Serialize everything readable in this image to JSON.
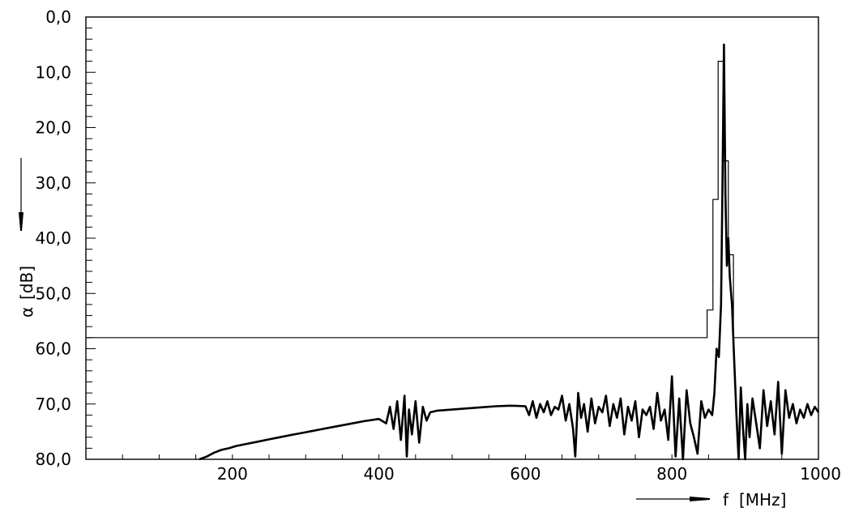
{
  "chart_data": {
    "type": "line",
    "title": "",
    "xlabel_symbol": "f",
    "xlabel_unit": "[MHz]",
    "ylabel_symbol": "α",
    "ylabel_unit": "[dB]",
    "xlim": [
      0,
      1000
    ],
    "ylim": [
      0,
      80
    ],
    "y_inverted": true,
    "grid": false,
    "x_ticks": [
      200,
      400,
      600,
      800,
      1000
    ],
    "x_tick_labels": [
      "200",
      "400",
      "600",
      "800",
      "1000"
    ],
    "y_ticks": [
      0,
      10,
      20,
      30,
      40,
      50,
      60,
      70,
      80
    ],
    "y_tick_labels": [
      "0,0",
      "10,0",
      "20,0",
      "30,0",
      "40,0",
      "50,0",
      "60,0",
      "70,0",
      "80,0"
    ],
    "series": [
      {
        "role": "tolerance-mask",
        "stroke_width": 1.2,
        "x": [
          0,
          848,
          848,
          856,
          856,
          863,
          863,
          870,
          870,
          877,
          877,
          884,
          884,
          891,
          891,
          1000
        ],
        "y": [
          58,
          58,
          53,
          53,
          33,
          33,
          8,
          8,
          26,
          26,
          43,
          43,
          58,
          58,
          58,
          58
        ]
      },
      {
        "role": "measured-response",
        "stroke_width": 2.6,
        "x": [
          155,
          165,
          175,
          185,
          195,
          205,
          220,
          235,
          250,
          265,
          280,
          300,
          320,
          340,
          360,
          380,
          400,
          410,
          415,
          420,
          425,
          430,
          435,
          438,
          441,
          445,
          450,
          455,
          460,
          465,
          470,
          480,
          500,
          520,
          540,
          560,
          580,
          600,
          605,
          610,
          615,
          620,
          625,
          630,
          635,
          640,
          645,
          650,
          655,
          660,
          665,
          668,
          672,
          676,
          680,
          685,
          690,
          695,
          700,
          705,
          710,
          715,
          720,
          725,
          730,
          735,
          740,
          745,
          750,
          755,
          760,
          765,
          770,
          775,
          780,
          785,
          790,
          795,
          800,
          805,
          810,
          815,
          820,
          825,
          830,
          835,
          840,
          845,
          850,
          855,
          858,
          861,
          864,
          867,
          869,
          871,
          873,
          875,
          877,
          879,
          882,
          885,
          888,
          891,
          894,
          897,
          900,
          903,
          906,
          910,
          915,
          920,
          925,
          930,
          935,
          940,
          945,
          950,
          955,
          960,
          965,
          970,
          975,
          980,
          985,
          990,
          995,
          1000
        ],
        "y": [
          80,
          79.5,
          78.8,
          78.3,
          78,
          77.6,
          77.2,
          76.8,
          76.4,
          76,
          75.6,
          75.1,
          74.6,
          74.1,
          73.6,
          73.1,
          72.7,
          73.5,
          70.5,
          74.5,
          69.5,
          76.5,
          68.5,
          79.5,
          71,
          75.5,
          69.5,
          77,
          70.5,
          73,
          71.5,
          71.2,
          71,
          70.8,
          70.6,
          70.4,
          70.3,
          70.4,
          72,
          69.5,
          72.5,
          70,
          71.5,
          69.5,
          72,
          70.5,
          71,
          68.5,
          73,
          70,
          74.5,
          79.5,
          68,
          72.5,
          70,
          75,
          69,
          73.5,
          70.5,
          71.5,
          68.5,
          74,
          70,
          72.5,
          69,
          75.5,
          70.5,
          73,
          69.5,
          76,
          71,
          72,
          70.5,
          74.5,
          68,
          73,
          71,
          76.5,
          65,
          79.5,
          69,
          80,
          67.5,
          73.5,
          76,
          79,
          69.5,
          72.5,
          71,
          72,
          68,
          60,
          61.5,
          52,
          30,
          5,
          32,
          45,
          40,
          47,
          52,
          62,
          72,
          80,
          67,
          74.5,
          80,
          70,
          76,
          69,
          73.5,
          78,
          67.5,
          74,
          69.5,
          75.5,
          66,
          79,
          67.5,
          72.5,
          70,
          73.5,
          71,
          72.5,
          70,
          72,
          70.5,
          71.5
        ]
      }
    ]
  }
}
